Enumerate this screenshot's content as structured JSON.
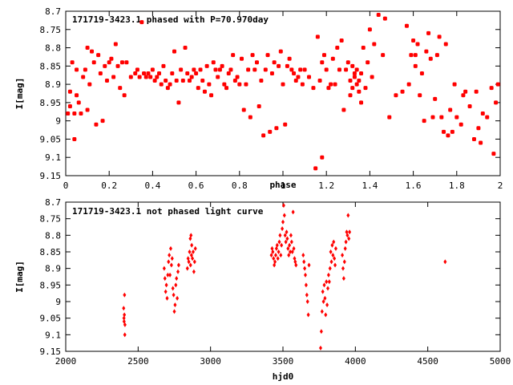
{
  "colors": {
    "points": "#ff0000",
    "axis": "#000000",
    "background": "#ffffff"
  },
  "chart_data": [
    {
      "type": "scatter",
      "title": "171719-3423.1 phased with P=70.970day",
      "xlabel": "phase",
      "ylabel": "I[mag]",
      "xlim": [
        0,
        2
      ],
      "ylim": [
        9.15,
        8.7
      ],
      "y_inverted": true,
      "grid": false,
      "marker": "filled-circle",
      "xticks": [
        0,
        0.2,
        0.4,
        0.6,
        0.8,
        1,
        1.2,
        1.4,
        1.6,
        1.8,
        2
      ],
      "xtick_labels": [
        "0",
        "0.2",
        "0.4",
        "0.6",
        "0.8",
        "1",
        "1.2",
        "1.4",
        "1.6",
        "1.8",
        "2"
      ],
      "yticks": [
        8.7,
        8.75,
        8.8,
        8.85,
        8.9,
        8.95,
        9,
        9.05,
        9.1,
        9.15
      ],
      "ytick_labels": [
        "8.7",
        "8.75",
        "8.8",
        "8.85",
        "8.9",
        "8.95",
        "9",
        "9.05",
        "9.1",
        "9.15"
      ],
      "points": [
        [
          0.01,
          8.98
        ],
        [
          0.02,
          8.96
        ],
        [
          0.02,
          8.92
        ],
        [
          0.03,
          8.84
        ],
        [
          0.04,
          9.05
        ],
        [
          0.04,
          8.98
        ],
        [
          0.05,
          8.86
        ],
        [
          0.05,
          8.93
        ],
        [
          0.06,
          8.95
        ],
        [
          0.07,
          8.98
        ],
        [
          0.08,
          8.88
        ],
        [
          0.09,
          8.86
        ],
        [
          0.1,
          8.8
        ],
        [
          0.1,
          8.97
        ],
        [
          0.11,
          8.9
        ],
        [
          0.12,
          8.81
        ],
        [
          0.13,
          8.84
        ],
        [
          0.14,
          9.01
        ],
        [
          0.15,
          8.82
        ],
        [
          0.16,
          8.87
        ],
        [
          0.17,
          9.0
        ],
        [
          0.18,
          8.85
        ],
        [
          0.19,
          8.89
        ],
        [
          0.2,
          8.84
        ],
        [
          0.21,
          8.83
        ],
        [
          0.22,
          8.88
        ],
        [
          0.23,
          8.79
        ],
        [
          0.24,
          8.85
        ],
        [
          0.25,
          8.91
        ],
        [
          0.26,
          8.84
        ],
        [
          0.27,
          8.93
        ],
        [
          0.28,
          8.84
        ],
        [
          0.3,
          8.88
        ],
        [
          0.32,
          8.87
        ],
        [
          0.33,
          8.86
        ],
        [
          0.34,
          8.88
        ],
        [
          0.35,
          8.73
        ],
        [
          0.36,
          8.87
        ],
        [
          0.37,
          8.88
        ],
        [
          0.38,
          8.87
        ],
        [
          0.39,
          8.88
        ],
        [
          0.4,
          8.86
        ],
        [
          0.41,
          8.89
        ],
        [
          0.42,
          8.88
        ],
        [
          0.43,
          8.87
        ],
        [
          0.44,
          8.9
        ],
        [
          0.45,
          8.85
        ],
        [
          0.46,
          8.89
        ],
        [
          0.47,
          8.91
        ],
        [
          0.48,
          8.9
        ],
        [
          0.49,
          8.87
        ],
        [
          0.5,
          8.81
        ],
        [
          0.51,
          8.89
        ],
        [
          0.52,
          8.95
        ],
        [
          0.53,
          8.86
        ],
        [
          0.54,
          8.89
        ],
        [
          0.55,
          8.8
        ],
        [
          0.56,
          8.87
        ],
        [
          0.57,
          8.89
        ],
        [
          0.58,
          8.88
        ],
        [
          0.59,
          8.86
        ],
        [
          0.6,
          8.87
        ],
        [
          0.61,
          8.91
        ],
        [
          0.62,
          8.86
        ],
        [
          0.63,
          8.89
        ],
        [
          0.64,
          8.92
        ],
        [
          0.65,
          8.85
        ],
        [
          0.66,
          8.9
        ],
        [
          0.67,
          8.93
        ],
        [
          0.68,
          8.84
        ],
        [
          0.69,
          8.86
        ],
        [
          0.7,
          8.88
        ],
        [
          0.71,
          8.86
        ],
        [
          0.72,
          8.85
        ],
        [
          0.73,
          8.9
        ],
        [
          0.74,
          8.91
        ],
        [
          0.75,
          8.87
        ],
        [
          0.76,
          8.86
        ],
        [
          0.77,
          8.82
        ],
        [
          0.78,
          8.89
        ],
        [
          0.79,
          8.88
        ],
        [
          0.8,
          8.9
        ],
        [
          0.81,
          8.83
        ],
        [
          0.82,
          8.97
        ],
        [
          0.83,
          8.9
        ],
        [
          0.84,
          8.86
        ],
        [
          0.85,
          8.99
        ],
        [
          0.86,
          8.82
        ],
        [
          0.87,
          8.86
        ],
        [
          0.88,
          8.84
        ],
        [
          0.89,
          8.96
        ],
        [
          0.9,
          8.89
        ],
        [
          0.91,
          9.04
        ],
        [
          0.92,
          8.86
        ],
        [
          0.93,
          8.82
        ],
        [
          0.94,
          9.03
        ],
        [
          0.95,
          8.87
        ],
        [
          0.96,
          8.84
        ],
        [
          0.97,
          9.02
        ],
        [
          0.98,
          8.85
        ],
        [
          0.99,
          8.81
        ],
        [
          1.0,
          8.9
        ],
        [
          1.01,
          9.01
        ],
        [
          1.02,
          8.85
        ],
        [
          1.03,
          8.83
        ],
        [
          1.04,
          8.86
        ],
        [
          1.05,
          8.87
        ],
        [
          1.06,
          8.89
        ],
        [
          1.07,
          8.88
        ],
        [
          1.08,
          8.86
        ],
        [
          1.09,
          8.9
        ],
        [
          1.1,
          8.86
        ],
        [
          1.12,
          8.88
        ],
        [
          1.14,
          8.91
        ],
        [
          1.15,
          9.13
        ],
        [
          1.16,
          8.77
        ],
        [
          1.17,
          8.89
        ],
        [
          1.18,
          9.1
        ],
        [
          1.18,
          8.84
        ],
        [
          1.19,
          8.82
        ],
        [
          1.2,
          8.86
        ],
        [
          1.21,
          8.91
        ],
        [
          1.22,
          8.9
        ],
        [
          1.23,
          8.83
        ],
        [
          1.24,
          8.9
        ],
        [
          1.25,
          8.8
        ],
        [
          1.26,
          8.86
        ],
        [
          1.27,
          8.78
        ],
        [
          1.28,
          8.97
        ],
        [
          1.29,
          8.86
        ],
        [
          1.3,
          8.84
        ],
        [
          1.31,
          8.93
        ],
        [
          1.31,
          8.89
        ],
        [
          1.32,
          8.85
        ],
        [
          1.32,
          8.91
        ],
        [
          1.33,
          8.87
        ],
        [
          1.33,
          8.88
        ],
        [
          1.34,
          8.9
        ],
        [
          1.34,
          8.86
        ],
        [
          1.35,
          8.89
        ],
        [
          1.35,
          8.92
        ],
        [
          1.36,
          8.87
        ],
        [
          1.36,
          8.95
        ],
        [
          1.37,
          8.8
        ],
        [
          1.38,
          8.91
        ],
        [
          1.39,
          8.84
        ],
        [
          1.4,
          8.75
        ],
        [
          1.41,
          8.88
        ],
        [
          1.42,
          8.79
        ],
        [
          1.44,
          8.71
        ],
        [
          1.46,
          8.82
        ],
        [
          1.47,
          8.72
        ],
        [
          1.49,
          8.99
        ],
        [
          1.52,
          8.93
        ],
        [
          1.55,
          8.92
        ],
        [
          1.57,
          8.74
        ],
        [
          1.58,
          8.9
        ],
        [
          1.59,
          8.82
        ],
        [
          1.6,
          8.78
        ],
        [
          1.61,
          8.85
        ],
        [
          1.61,
          8.82
        ],
        [
          1.62,
          8.79
        ],
        [
          1.63,
          8.93
        ],
        [
          1.64,
          8.87
        ],
        [
          1.65,
          9.0
        ],
        [
          1.66,
          8.81
        ],
        [
          1.67,
          8.76
        ],
        [
          1.68,
          8.83
        ],
        [
          1.69,
          8.99
        ],
        [
          1.7,
          8.94
        ],
        [
          1.71,
          8.82
        ],
        [
          1.72,
          8.77
        ],
        [
          1.73,
          8.99
        ],
        [
          1.74,
          9.03
        ],
        [
          1.75,
          8.79
        ],
        [
          1.76,
          9.04
        ],
        [
          1.77,
          8.97
        ],
        [
          1.78,
          9.03
        ],
        [
          1.79,
          8.9
        ],
        [
          1.8,
          8.99
        ],
        [
          1.82,
          9.01
        ],
        [
          1.83,
          8.93
        ],
        [
          1.84,
          8.92
        ],
        [
          1.86,
          8.96
        ],
        [
          1.88,
          9.05
        ],
        [
          1.89,
          8.92
        ],
        [
          1.9,
          9.02
        ],
        [
          1.91,
          9.06
        ],
        [
          1.92,
          8.98
        ],
        [
          1.94,
          8.99
        ],
        [
          1.96,
          8.91
        ],
        [
          1.97,
          9.09
        ],
        [
          1.98,
          8.95
        ],
        [
          1.99,
          8.9
        ]
      ]
    },
    {
      "type": "scatter",
      "title": "171719-3423.1 not phased light curve",
      "xlabel": "hjd0",
      "ylabel": "I[mag]",
      "xlim": [
        2000,
        5000
      ],
      "ylim": [
        9.15,
        8.7
      ],
      "y_inverted": true,
      "grid": false,
      "marker": "small-diamond",
      "xticks": [
        2000,
        2500,
        3000,
        3500,
        4000,
        4500,
        5000
      ],
      "xtick_labels": [
        "2000",
        "2500",
        "3000",
        "3500",
        "4000",
        "4500",
        "5000"
      ],
      "yticks": [
        8.7,
        8.75,
        8.8,
        8.85,
        8.9,
        8.95,
        9,
        9.05,
        9.1,
        9.15
      ],
      "ytick_labels": [
        "8.7",
        "8.75",
        "8.8",
        "8.85",
        "8.9",
        "8.95",
        "9",
        "9.05",
        "9.1",
        "9.15"
      ],
      "points": [
        [
          2400,
          9.02
        ],
        [
          2402,
          9.05
        ],
        [
          2403,
          9.06
        ],
        [
          2405,
          9.04
        ],
        [
          2406,
          8.98
        ],
        [
          2408,
          9.1
        ],
        [
          2409,
          9.07
        ],
        [
          2680,
          8.9
        ],
        [
          2685,
          8.93
        ],
        [
          2690,
          8.97
        ],
        [
          2695,
          8.95
        ],
        [
          2700,
          8.99
        ],
        [
          2705,
          8.92
        ],
        [
          2710,
          8.88
        ],
        [
          2715,
          8.86
        ],
        [
          2720,
          8.92
        ],
        [
          2725,
          8.84
        ],
        [
          2730,
          8.89
        ],
        [
          2735,
          8.87
        ],
        [
          2740,
          8.96
        ],
        [
          2745,
          8.98
        ],
        [
          2750,
          9.03
        ],
        [
          2755,
          9.01
        ],
        [
          2760,
          8.95
        ],
        [
          2765,
          8.93
        ],
        [
          2770,
          8.99
        ],
        [
          2775,
          8.91
        ],
        [
          2780,
          8.89
        ],
        [
          2840,
          8.9
        ],
        [
          2845,
          8.87
        ],
        [
          2850,
          8.88
        ],
        [
          2855,
          8.85
        ],
        [
          2860,
          8.81
        ],
        [
          2862,
          8.89
        ],
        [
          2865,
          8.8
        ],
        [
          2868,
          8.86
        ],
        [
          2870,
          8.83
        ],
        [
          2875,
          8.87
        ],
        [
          2880,
          8.85
        ],
        [
          2885,
          8.91
        ],
        [
          2890,
          8.88
        ],
        [
          2895,
          8.84
        ],
        [
          3420,
          8.86
        ],
        [
          3425,
          8.84
        ],
        [
          3430,
          8.85
        ],
        [
          3435,
          8.87
        ],
        [
          3440,
          8.89
        ],
        [
          3445,
          8.88
        ],
        [
          3450,
          8.86
        ],
        [
          3455,
          8.84
        ],
        [
          3460,
          8.83
        ],
        [
          3465,
          8.87
        ],
        [
          3470,
          8.85
        ],
        [
          3475,
          8.82
        ],
        [
          3480,
          8.8
        ],
        [
          3485,
          8.86
        ],
        [
          3490,
          8.83
        ],
        [
          3495,
          8.78
        ],
        [
          3500,
          8.76
        ],
        [
          3505,
          8.71
        ],
        [
          3510,
          8.74
        ],
        [
          3515,
          8.8
        ],
        [
          3520,
          8.82
        ],
        [
          3525,
          8.79
        ],
        [
          3530,
          8.81
        ],
        [
          3535,
          8.84
        ],
        [
          3540,
          8.86
        ],
        [
          3545,
          8.83
        ],
        [
          3550,
          8.85
        ],
        [
          3555,
          8.8
        ],
        [
          3560,
          8.82
        ],
        [
          3565,
          8.85
        ],
        [
          3570,
          8.73
        ],
        [
          3575,
          8.84
        ],
        [
          3580,
          8.87
        ],
        [
          3585,
          8.88
        ],
        [
          3590,
          8.89
        ],
        [
          3640,
          8.86
        ],
        [
          3645,
          8.88
        ],
        [
          3650,
          8.9
        ],
        [
          3655,
          8.92
        ],
        [
          3660,
          8.95
        ],
        [
          3665,
          8.98
        ],
        [
          3670,
          9.0
        ],
        [
          3675,
          9.04
        ],
        [
          3680,
          8.89
        ],
        [
          3760,
          9.14
        ],
        [
          3765,
          9.09
        ],
        [
          3770,
          9.03
        ],
        [
          3775,
          8.97
        ],
        [
          3780,
          9.0
        ],
        [
          3785,
          8.95
        ],
        [
          3790,
          8.99
        ],
        [
          3795,
          9.04
        ],
        [
          3800,
          8.94
        ],
        [
          3805,
          9.01
        ],
        [
          3810,
          8.96
        ],
        [
          3815,
          8.92
        ],
        [
          3820,
          8.94
        ],
        [
          3825,
          8.9
        ],
        [
          3830,
          8.85
        ],
        [
          3835,
          8.88
        ],
        [
          3840,
          8.83
        ],
        [
          3845,
          8.86
        ],
        [
          3850,
          8.82
        ],
        [
          3855,
          8.87
        ],
        [
          3860,
          8.89
        ],
        [
          3865,
          8.84
        ],
        [
          3910,
          8.86
        ],
        [
          3915,
          8.9
        ],
        [
          3920,
          8.93
        ],
        [
          3925,
          8.88
        ],
        [
          3930,
          8.84
        ],
        [
          3935,
          8.82
        ],
        [
          3940,
          8.79
        ],
        [
          3945,
          8.8
        ],
        [
          3950,
          8.74
        ],
        [
          3955,
          8.81
        ],
        [
          3960,
          8.79
        ],
        [
          4620,
          8.88
        ]
      ]
    }
  ]
}
